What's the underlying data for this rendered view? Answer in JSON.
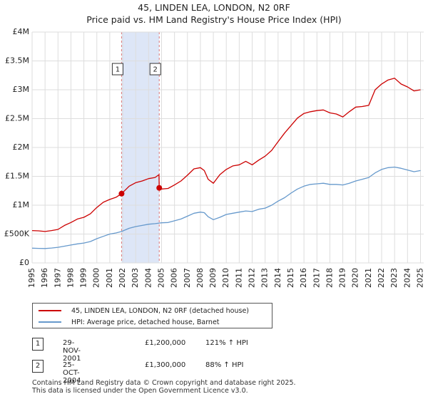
{
  "chart_data": {
    "type": "line",
    "title_line1": "45, LINDEN LEA, LONDON, N2 0RF",
    "title_line2": "Price paid vs. HM Land Registry's House Price Index (HPI)",
    "xlim": [
      1995.0,
      2025.25
    ],
    "ylim": [
      0,
      4000000
    ],
    "x_ticks": [
      1995,
      1996,
      1997,
      1998,
      1999,
      2000,
      2001,
      2002,
      2003,
      2004,
      2005,
      2006,
      2007,
      2008,
      2009,
      2010,
      2011,
      2012,
      2013,
      2014,
      2015,
      2016,
      2017,
      2018,
      2019,
      2020,
      2021,
      2022,
      2023,
      2024,
      2025
    ],
    "x_tick_labels": [
      "1995",
      "1996",
      "1997",
      "1998",
      "1999",
      "2000",
      "2001",
      "2002",
      "2003",
      "2004",
      "2005",
      "2006",
      "2007",
      "2008",
      "2009",
      "2010",
      "2011",
      "2012",
      "2013",
      "2014",
      "2015",
      "2016",
      "2017",
      "2018",
      "2019",
      "2020",
      "2021",
      "2022",
      "2023",
      "2024",
      "2025"
    ],
    "y_ticks": [
      0,
      500000,
      1000000,
      1500000,
      2000000,
      2500000,
      3000000,
      3500000,
      4000000
    ],
    "y_tick_labels": [
      "£0",
      "£500K",
      "£1M",
      "£1.5M",
      "£2M",
      "£2.5M",
      "£3M",
      "£3.5M",
      "£4M"
    ],
    "grid": true,
    "shaded_span": [
      2001.91,
      2004.82
    ],
    "sale_markers": [
      {
        "label": "1",
        "x": 2001.91,
        "y": 1200000
      },
      {
        "label": "2",
        "x": 2004.82,
        "y": 1300000
      }
    ],
    "series": [
      {
        "name": "45, LINDEN LEA, LONDON, N2 0RF (detached house)",
        "color": "#cc0000",
        "x": [
          1995.0,
          1995.5,
          1996.0,
          1996.5,
          1997.0,
          1997.5,
          1998.0,
          1998.5,
          1999.0,
          1999.5,
          2000.0,
          2000.5,
          2001.0,
          2001.5,
          2001.91,
          2002.5,
          2003.0,
          2003.5,
          2004.0,
          2004.5,
          2004.8,
          2004.82,
          2005.0,
          2005.5,
          2006.0,
          2006.5,
          2007.0,
          2007.5,
          2008.0,
          2008.3,
          2008.6,
          2009.0,
          2009.5,
          2010.0,
          2010.5,
          2011.0,
          2011.5,
          2012.0,
          2012.5,
          2013.0,
          2013.5,
          2014.0,
          2014.5,
          2015.0,
          2015.5,
          2016.0,
          2016.5,
          2017.0,
          2017.5,
          2018.0,
          2018.5,
          2019.0,
          2019.5,
          2020.0,
          2020.5,
          2021.0,
          2021.5,
          2022.0,
          2022.5,
          2023.0,
          2023.5,
          2024.0,
          2024.5,
          2025.0
        ],
        "y": [
          560000,
          555000,
          545000,
          560000,
          580000,
          650000,
          700000,
          760000,
          790000,
          850000,
          960000,
          1050000,
          1100000,
          1140000,
          1200000,
          1330000,
          1390000,
          1420000,
          1460000,
          1480000,
          1530000,
          1300000,
          1280000,
          1290000,
          1350000,
          1420000,
          1520000,
          1630000,
          1650000,
          1600000,
          1450000,
          1380000,
          1530000,
          1620000,
          1680000,
          1700000,
          1760000,
          1700000,
          1780000,
          1850000,
          1950000,
          2100000,
          2250000,
          2380000,
          2510000,
          2590000,
          2620000,
          2640000,
          2650000,
          2600000,
          2580000,
          2530000,
          2620000,
          2700000,
          2710000,
          2730000,
          3000000,
          3100000,
          3170000,
          3200000,
          3100000,
          3050000,
          2980000,
          3000000
        ]
      },
      {
        "name": "HPI: Average price, detached house, Barnet",
        "color": "#6699cc",
        "x": [
          1995.0,
          1995.5,
          1996.0,
          1996.5,
          1997.0,
          1997.5,
          1998.0,
          1998.5,
          1999.0,
          1999.5,
          2000.0,
          2000.5,
          2001.0,
          2001.5,
          2001.91,
          2002.5,
          2003.0,
          2003.5,
          2004.0,
          2004.5,
          2004.82,
          2005.0,
          2005.5,
          2006.0,
          2006.5,
          2007.0,
          2007.5,
          2008.0,
          2008.3,
          2008.6,
          2009.0,
          2009.5,
          2010.0,
          2010.5,
          2011.0,
          2011.5,
          2012.0,
          2012.5,
          2013.0,
          2013.5,
          2014.0,
          2014.5,
          2015.0,
          2015.5,
          2016.0,
          2016.5,
          2017.0,
          2017.5,
          2018.0,
          2018.5,
          2019.0,
          2019.5,
          2020.0,
          2020.5,
          2021.0,
          2021.5,
          2022.0,
          2022.5,
          2023.0,
          2023.5,
          2024.0,
          2024.5,
          2025.0
        ],
        "y": [
          255000,
          252000,
          250000,
          258000,
          270000,
          290000,
          310000,
          330000,
          345000,
          370000,
          420000,
          460000,
          500000,
          520000,
          545000,
          600000,
          630000,
          650000,
          670000,
          680000,
          690000,
          695000,
          700000,
          730000,
          760000,
          810000,
          860000,
          880000,
          870000,
          800000,
          750000,
          790000,
          840000,
          860000,
          880000,
          900000,
          890000,
          930000,
          950000,
          1000000,
          1070000,
          1130000,
          1210000,
          1280000,
          1330000,
          1360000,
          1370000,
          1380000,
          1360000,
          1360000,
          1350000,
          1380000,
          1420000,
          1450000,
          1480000,
          1560000,
          1620000,
          1650000,
          1660000,
          1640000,
          1610000,
          1580000,
          1600000
        ]
      }
    ]
  },
  "legend": {
    "items": [
      {
        "label": "45, LINDEN LEA, LONDON, N2 0RF (detached house)",
        "color": "#cc0000"
      },
      {
        "label": "HPI: Average price, detached house, Barnet",
        "color": "#6699cc"
      }
    ]
  },
  "sales": [
    {
      "badge": "1",
      "date": "29-NOV-2001",
      "price": "£1,200,000",
      "hpi": "121% ↑ HPI"
    },
    {
      "badge": "2",
      "date": "25-OCT-2004",
      "price": "£1,300,000",
      "hpi": "88% ↑ HPI"
    }
  ],
  "footer": {
    "line1": "Contains HM Land Registry data © Crown copyright and database right 2025.",
    "line2": "This data is licensed under the Open Government Licence v3.0."
  }
}
